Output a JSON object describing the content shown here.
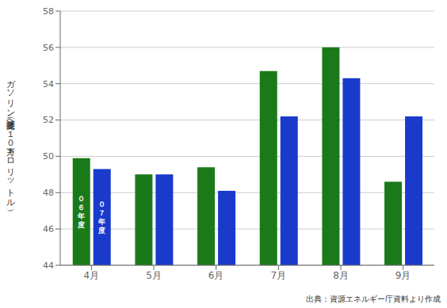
{
  "chart_data": {
    "type": "bar",
    "y_label": "ガソリン販売量（へ１０万キロリットル）",
    "annotation": "出典：資源エネルギー庁資料より作成",
    "categories": [
      "4月",
      "5月",
      "6月",
      "7月",
      "8月",
      "9月"
    ],
    "series": [
      {
        "name": "０\n６\n年\n度",
        "color": "#1a7a1a",
        "values": [
          49.9,
          49.0,
          49.4,
          54.7,
          56.0,
          48.6
        ]
      },
      {
        "name": "０\n７\n年\n度",
        "color": "#1a3acc",
        "values": [
          49.3,
          49.0,
          48.1,
          52.2,
          54.3,
          52.2
        ]
      }
    ],
    "ylim": [
      44,
      58
    ],
    "yticks": [
      44,
      46,
      48,
      50,
      52,
      54,
      56,
      58
    ],
    "grid": "y"
  }
}
